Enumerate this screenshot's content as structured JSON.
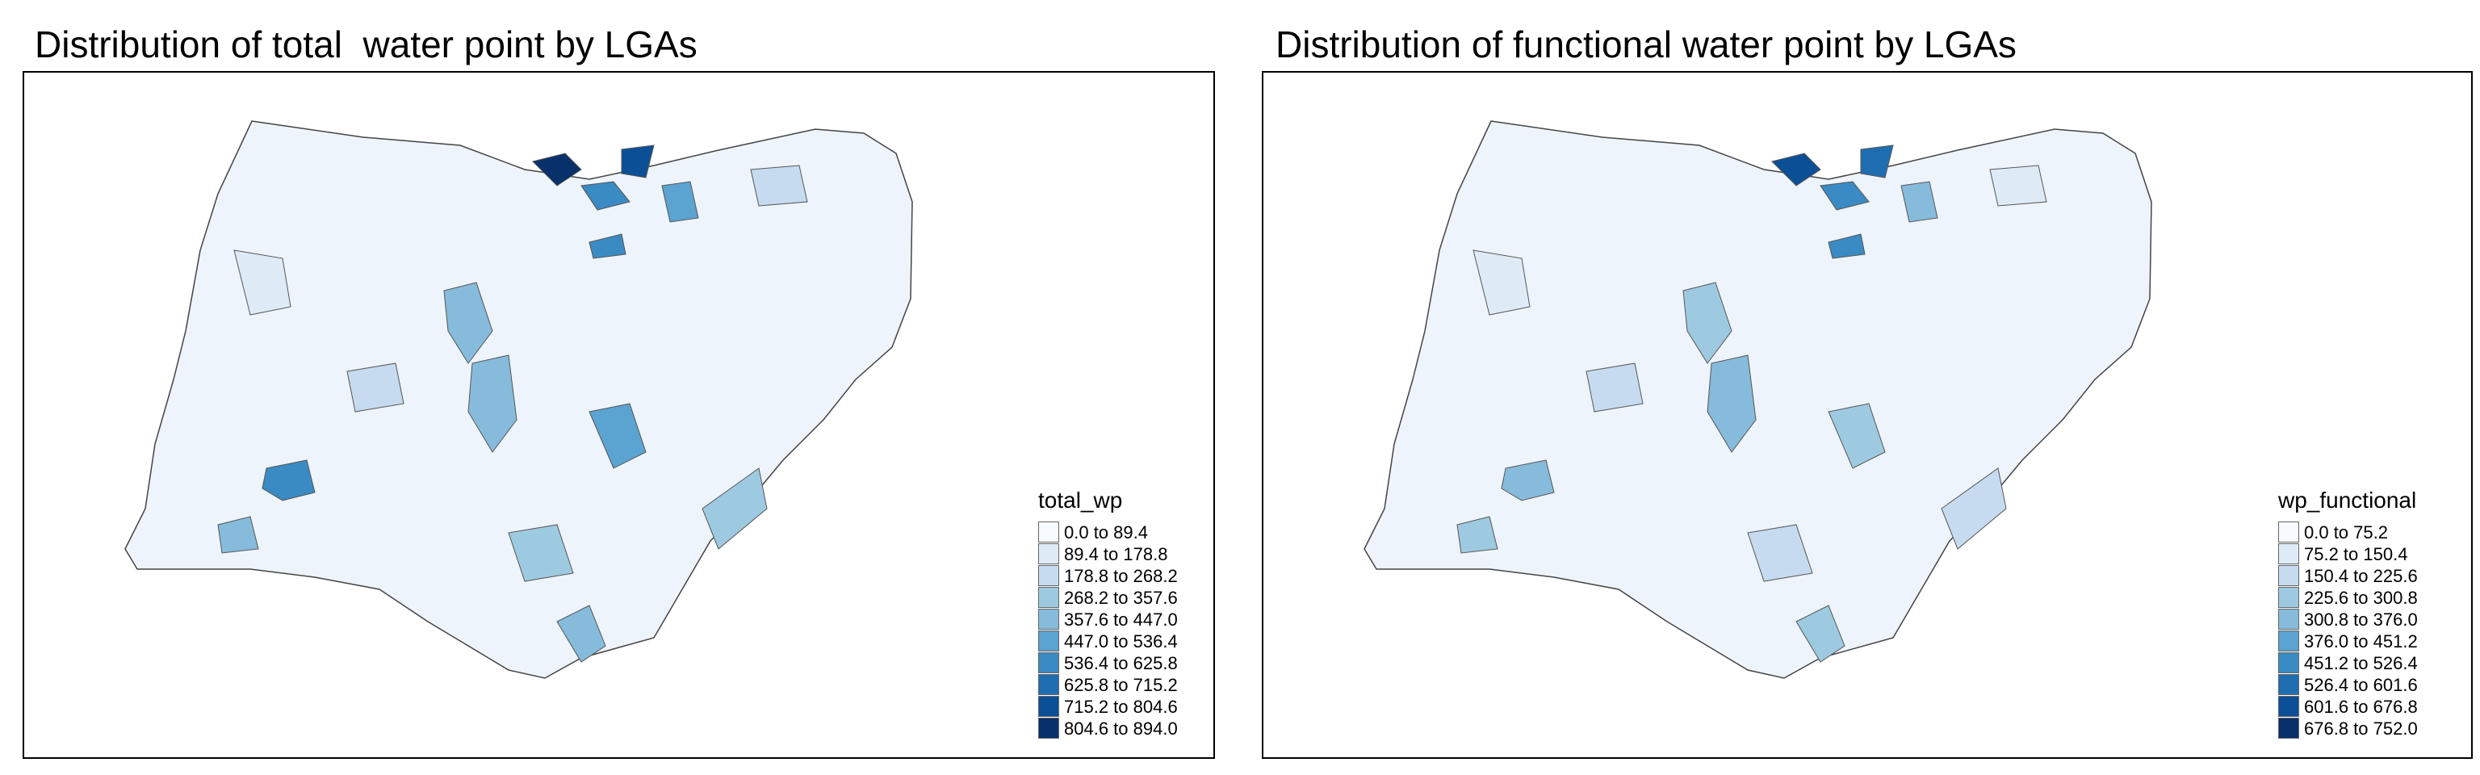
{
  "panels": [
    {
      "title": "Distribution of total  water point by LGAs",
      "legend_title": "total_wp",
      "legend_items": [
        "0.0 to 89.4",
        "89.4 to 178.8",
        "178.8 to 268.2",
        "268.2 to 357.6",
        "357.6 to 447.0",
        "447.0 to 536.4",
        "536.4 to 625.8",
        "625.8 to 715.2",
        "715.2 to 804.6",
        "804.6 to 894.0"
      ]
    },
    {
      "title": "Distribution of functional water point by LGAs",
      "legend_title": "wp_functional",
      "legend_items": [
        "0.0 to 75.2",
        "75.2 to 150.4",
        "150.4 to 225.6",
        "225.6 to 300.8",
        "300.8 to 376.0",
        "376.0 to 451.2",
        "451.2 to 526.4",
        "526.4 to 601.6",
        "601.6 to 676.8",
        "676.8 to 752.0"
      ]
    }
  ],
  "palette": [
    "#f7fbff",
    "#deebf7",
    "#c6dbef",
    "#9ecae1",
    "#86bbdb",
    "#5ba3d0",
    "#3a8bc3",
    "#1f6db1",
    "#0b4f97",
    "#08306b"
  ]
}
